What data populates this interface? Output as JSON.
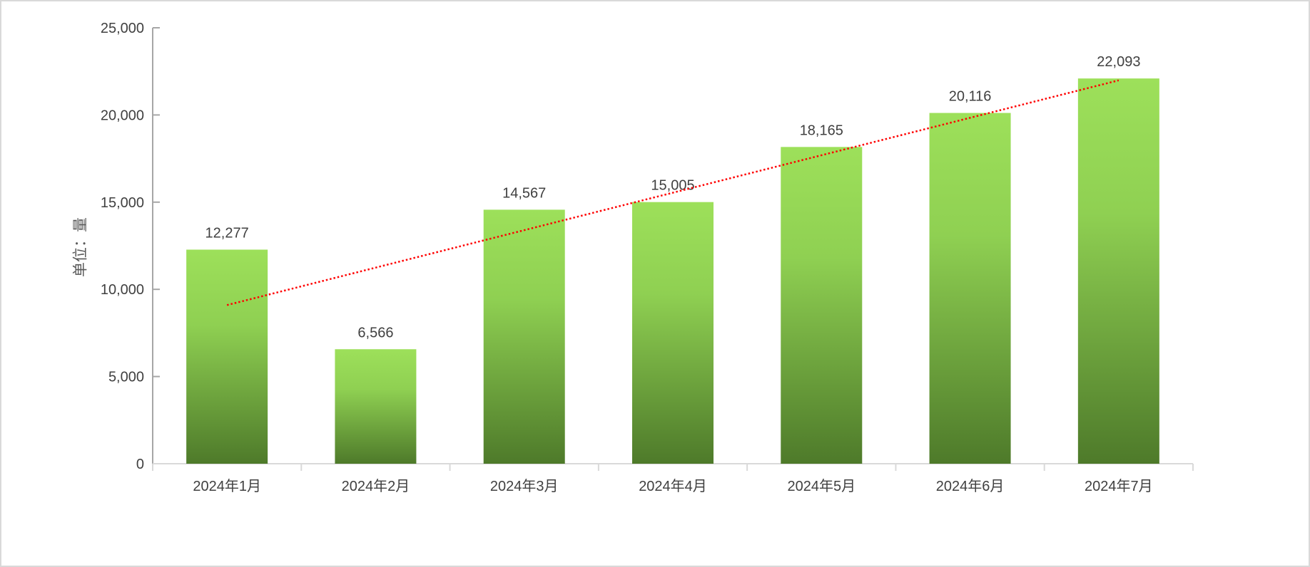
{
  "chart_data": {
    "type": "bar",
    "title": "",
    "xlabel": "",
    "ylabel": "单位：量",
    "categories": [
      "2024年1月",
      "2024年2月",
      "2024年3月",
      "2024年4月",
      "2024年5月",
      "2024年6月",
      "2024年7月"
    ],
    "values": [
      12277,
      6566,
      14567,
      15005,
      18165,
      20116,
      22093
    ],
    "value_labels": [
      "12,277",
      "6,566",
      "14,567",
      "15,005",
      "18,165",
      "20,116",
      "22,093"
    ],
    "ylim": [
      0,
      25000
    ],
    "yticks": [
      0,
      5000,
      10000,
      15000,
      20000,
      25000
    ],
    "ytick_labels": [
      "0",
      "5,000",
      "10,000",
      "15,000",
      "20,000",
      "25,000"
    ],
    "grid": false,
    "legend": "none",
    "trendline": {
      "type": "linear",
      "style": "dotted",
      "color": "#ff0000"
    },
    "colors": {
      "bar_top": "#9de05a",
      "bar_bottom": "#4e7a2a",
      "axis": "#a6a6a6"
    }
  }
}
